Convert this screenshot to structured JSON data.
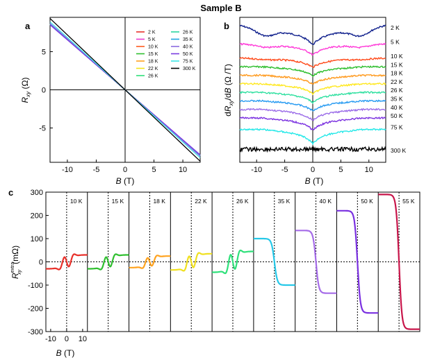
{
  "figure_title": "Sample B",
  "chart_data": [
    {
      "panel": "a",
      "type": "line",
      "xlabel": "B (T)",
      "ylabel": "R_xy (Ω)",
      "xlim": [
        -13,
        13
      ],
      "ylim": [
        -9.5,
        9.5
      ],
      "xticks": [
        -10,
        -5,
        0,
        5,
        10
      ],
      "yticks": [
        -5,
        0,
        5
      ],
      "series": [
        {
          "name": "2 K",
          "color": "#e8302a",
          "slope": -0.66
        },
        {
          "name": "5 K",
          "color": "#e83ad0",
          "slope": -0.66
        },
        {
          "name": "10 K",
          "color": "#ff5a1e",
          "slope": -0.66
        },
        {
          "name": "15 K",
          "color": "#2fbf2f",
          "slope": -0.66
        },
        {
          "name": "18 K",
          "color": "#ffa21e",
          "slope": -0.66
        },
        {
          "name": "22 K",
          "color": "#f2e31b",
          "slope": -0.66
        },
        {
          "name": "26 K",
          "color": "#2fe07a",
          "slope": -0.66
        },
        {
          "name": "26 K",
          "color": "#29d6a0",
          "slope": -0.66
        },
        {
          "name": "35 K",
          "color": "#1ea3e0",
          "slope": -0.665
        },
        {
          "name": "40 K",
          "color": "#8a6be0",
          "slope": -0.67
        },
        {
          "name": "50 K",
          "color": "#7a3ae0",
          "slope": -0.655
        },
        {
          "name": "75 K",
          "color": "#3ce6e6",
          "slope": -0.685
        },
        {
          "name": "300 K",
          "color": "#000000",
          "slope": -0.72
        }
      ]
    },
    {
      "panel": "b",
      "type": "line",
      "xlabel": "B (T)",
      "ylabel": "dR_xy/dB (Ω /T)",
      "xlim": [
        -13,
        13
      ],
      "xticks": [
        -10,
        -5,
        0,
        5,
        10
      ],
      "series": [
        {
          "name": "2 K",
          "color": "#0f1f8c",
          "offset": 0,
          "cusp": 0.75,
          "dip": 0.55
        },
        {
          "name": "5 K",
          "color": "#ff3ad8",
          "offset": 1,
          "cusp": 0.55,
          "dip": 0.25
        },
        {
          "name": "10 K",
          "color": "#ff4a1a",
          "offset": 2,
          "cusp": 0.45,
          "dip": 0.1
        },
        {
          "name": "15 K",
          "color": "#2fbf2f",
          "offset": 2.6,
          "cusp": 0.45,
          "dip": 0.0
        },
        {
          "name": "18 K",
          "color": "#ff9a1e",
          "offset": 3.2,
          "cusp": 0.45,
          "dip": 0.0
        },
        {
          "name": "22 K",
          "color": "#ffe81e",
          "offset": 3.8,
          "cusp": 0.5,
          "dip": 0.0
        },
        {
          "name": "26 K",
          "color": "#2fe0a0",
          "offset": 4.4,
          "cusp": 0.5,
          "dip": 0.0
        },
        {
          "name": "35 K",
          "color": "#2a9cf2",
          "offset": 5.0,
          "cusp": 0.5,
          "dip": 0.0
        },
        {
          "name": "40 K",
          "color": "#9a6be8",
          "offset": 5.6,
          "cusp": 0.55,
          "dip": 0.0
        },
        {
          "name": "50 K",
          "color": "#7a30e0",
          "offset": 6.2,
          "cusp": 0.6,
          "dip": 0.0
        },
        {
          "name": "75 K",
          "color": "#25e8e8",
          "offset": 7.0,
          "cusp": 0.7,
          "dip": 0.0
        },
        {
          "name": "300 K",
          "color": "#000000",
          "offset": 8.4,
          "cusp": 0.0,
          "dip": 0.0
        }
      ]
    },
    {
      "panel": "c",
      "type": "line",
      "xlabel": "B (T)",
      "ylabel": "R_xy^extra (mΩ)",
      "ylim": [
        -300,
        300
      ],
      "yticks": [
        -300,
        -200,
        -100,
        0,
        100,
        200,
        300
      ],
      "xlim_per_subpanel": [
        -13,
        13
      ],
      "xticks": [
        -10,
        0,
        10
      ],
      "series": [
        {
          "name": "10 K",
          "color": "#e8302a",
          "shape": "wiggle",
          "amp": 30
        },
        {
          "name": "15 K",
          "color": "#2fbf2f",
          "shape": "wiggle",
          "amp": 30
        },
        {
          "name": "18 K",
          "color": "#ffa21e",
          "shape": "wiggle",
          "amp": 25
        },
        {
          "name": "22 K",
          "color": "#f0e020",
          "shape": "wiggle",
          "amp": 35
        },
        {
          "name": "26 K",
          "color": "#2fe07a",
          "shape": "wiggle",
          "amp": 45
        },
        {
          "name": "35 K",
          "color": "#25c8e8",
          "shape": "step",
          "amp": 100
        },
        {
          "name": "40 K",
          "color": "#a56be8",
          "shape": "step",
          "amp": 135
        },
        {
          "name": "50 K",
          "color": "#7a30e0",
          "shape": "step",
          "amp": 220
        },
        {
          "name": "55 K",
          "color": "#c8154a",
          "shape": "step",
          "amp": 290
        }
      ]
    }
  ]
}
